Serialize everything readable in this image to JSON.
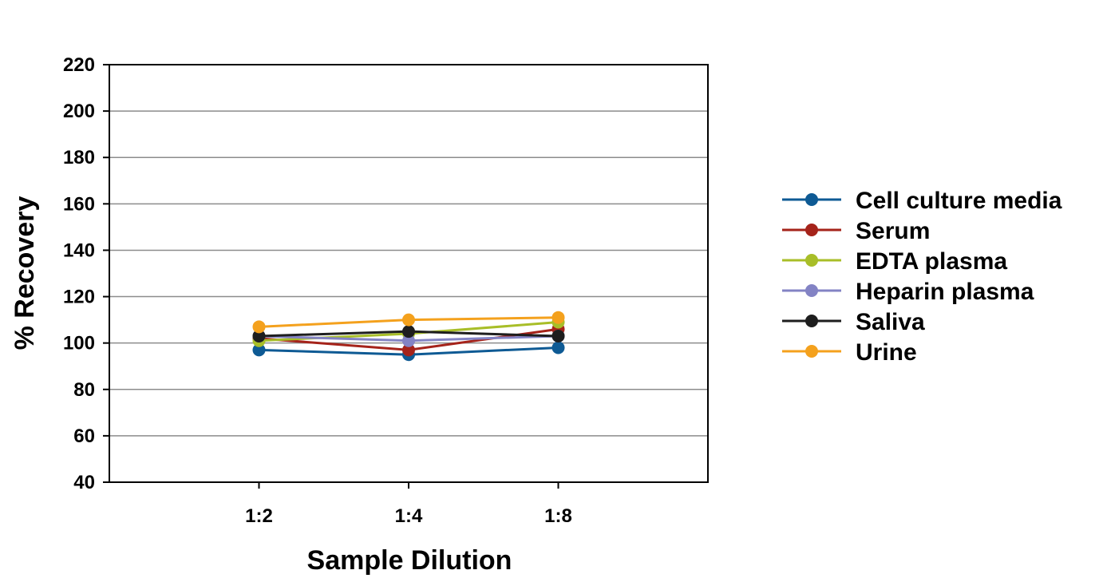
{
  "chart_data": {
    "type": "line",
    "title": "",
    "xlabel": "Sample Dilution",
    "ylabel": "% Recovery",
    "categories": [
      "1:2",
      "1:4",
      "1:8"
    ],
    "ylim": [
      40,
      220
    ],
    "yticks": [
      40,
      60,
      80,
      100,
      120,
      140,
      160,
      180,
      200,
      220
    ],
    "grid": "horizontal",
    "legend_position": "right",
    "series": [
      {
        "name": "Cell culture media",
        "color": "#0E5A94",
        "values": [
          97,
          95,
          98
        ]
      },
      {
        "name": "Serum",
        "color": "#A5231A",
        "values": [
          102,
          97,
          106
        ]
      },
      {
        "name": "EDTA plasma",
        "color": "#A8BE28",
        "values": [
          101,
          104,
          109
        ]
      },
      {
        "name": "Heparin plasma",
        "color": "#8383C4",
        "values": [
          103,
          101,
          103
        ]
      },
      {
        "name": "Saliva",
        "color": "#1E1E1E",
        "values": [
          103,
          105,
          103
        ]
      },
      {
        "name": "Urine",
        "color": "#F4A11D",
        "values": [
          107,
          110,
          111
        ]
      }
    ]
  }
}
